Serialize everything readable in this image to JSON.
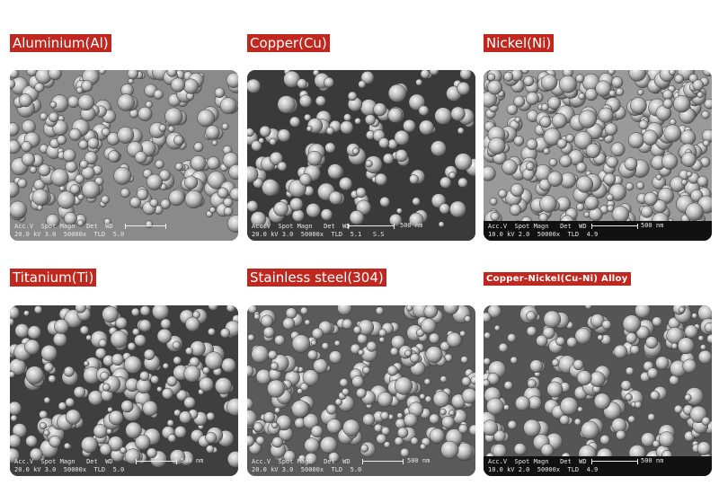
{
  "panels": [
    {
      "label": "Aluminium(Al)",
      "meta_row1": "Acc.V  Spot Magn   Det  WD",
      "meta_row2": "20.0 kV 3.0  50000x  TLD  5.0",
      "scale": "",
      "tone": "#8a8a8a"
    },
    {
      "label": "Copper(Cu)",
      "meta_row1": "Acc.V  Spot Magn   Det  WD",
      "meta_row2": "20.0 kV 3.0  50000x  TLD  5.1   S.S",
      "scale": "500 nm",
      "tone": "#3a3a3a"
    },
    {
      "label": "Nickel(Ni)",
      "meta_row1": "Acc.V  Spot Magn   Det  WD",
      "meta_row2": "10.0 kV 2.0  50000x  TLD  4.9",
      "scale": "500 nm",
      "tone": "#9a9a9a"
    },
    {
      "label": "Titanium(Ti)",
      "meta_row1": "Acc.V  Spot Magn   Det  WD",
      "meta_row2": "20.0 kV 3.0  50000x  TLD  5.0",
      "scale": "500 nm",
      "tone": "#3f3f3f"
    },
    {
      "label": "Stainless steel(304)",
      "meta_row1": "Acc.V  Spot Magn   Det  WD",
      "meta_row2": "20.0 kV 3.0  50000x  TLD  5.0",
      "scale": "500 nm",
      "tone": "#5a5a5a"
    },
    {
      "label": "Copper-Nickel(Cu-Ni) Alloy",
      "meta_row1": "Acc.V  Spot Magn   Det  WD",
      "meta_row2": "10.0 kV 2.0  50000x  TLD  4.9",
      "scale": "500 nm",
      "tone": "#555555"
    }
  ],
  "colors": {
    "label_bg": "#c0281f",
    "label_text": "#ffffff"
  }
}
